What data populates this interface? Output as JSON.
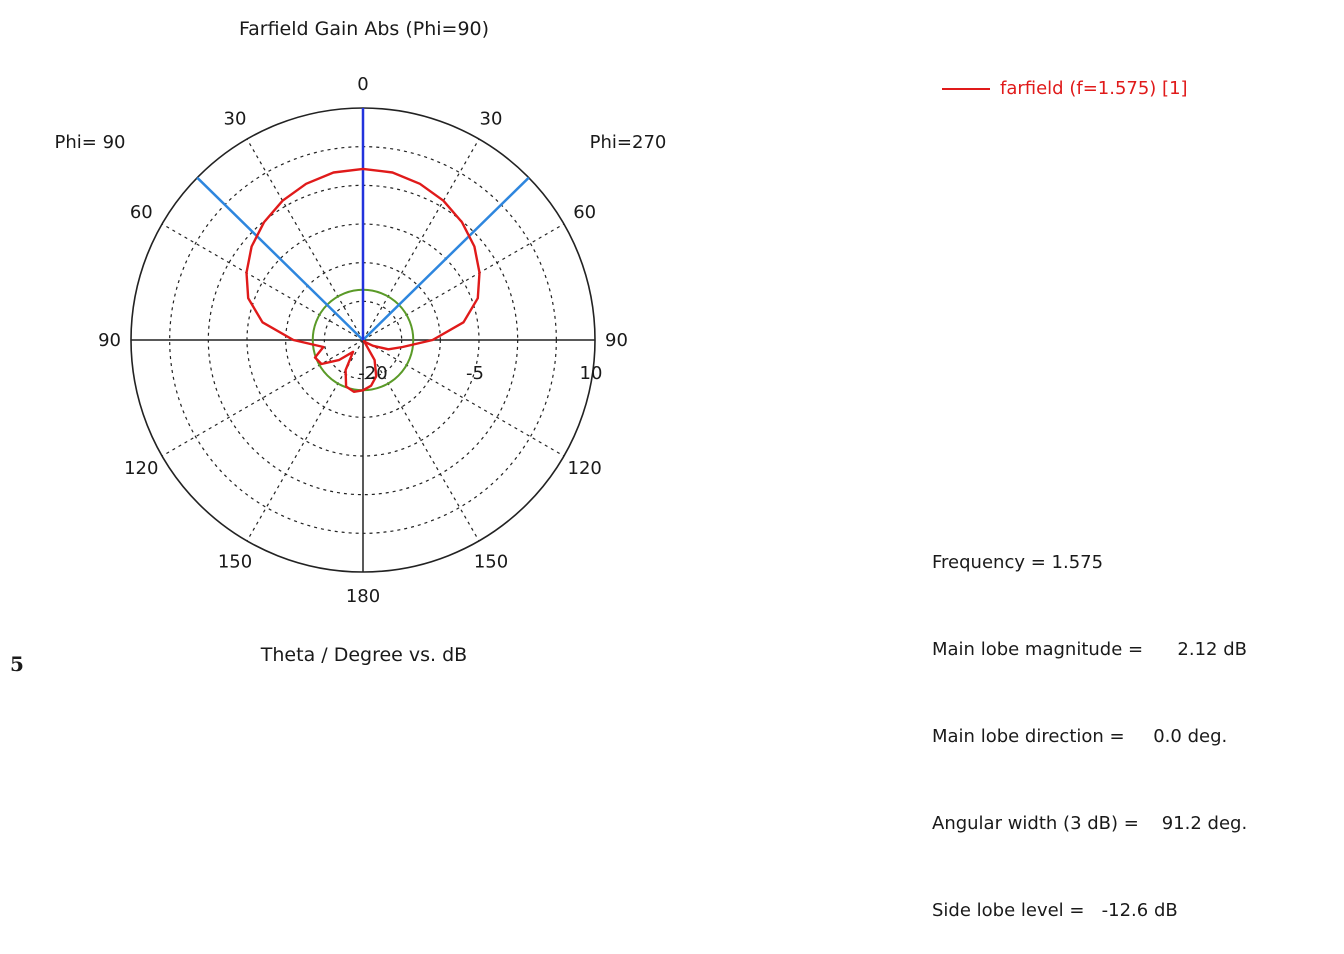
{
  "chart_data": {
    "type": "polar",
    "title": "Farfield Gain Abs (Phi=90)",
    "xlabel": "Theta / Degree vs. dB",
    "scale_db": {
      "min": -20,
      "max": 10,
      "rings": [
        -20,
        -15,
        -10,
        -5,
        0,
        5,
        10
      ]
    },
    "radial_tick_labels": [
      "-20",
      "-5",
      "10"
    ],
    "angle_labels": [
      {
        "text": "0",
        "angle_deg": 0
      },
      {
        "text": "30",
        "angle_deg": -30
      },
      {
        "text": "30",
        "angle_deg": 30
      },
      {
        "text": "60",
        "angle_deg": -60
      },
      {
        "text": "60",
        "angle_deg": 60
      },
      {
        "text": "90",
        "angle_deg": -90
      },
      {
        "text": "90",
        "angle_deg": 90
      },
      {
        "text": "120",
        "angle_deg": -120
      },
      {
        "text": "120",
        "angle_deg": 120
      },
      {
        "text": "150",
        "angle_deg": -150
      },
      {
        "text": "150",
        "angle_deg": 150
      },
      {
        "text": "180",
        "angle_deg": 180
      }
    ],
    "phi_left_label": "Phi= 90",
    "phi_right_label": "Phi=270",
    "series": [
      {
        "name": "farfield (f=1.575) [1]",
        "color": "#e01a1a",
        "theta_deg": [
          -180,
          -170,
          -160,
          -150,
          -140,
          -130,
          -120,
          -110,
          -100,
          -90,
          -80,
          -70,
          -60,
          -50,
          -40,
          -30,
          -20,
          -10,
          0,
          10,
          20,
          30,
          40,
          50,
          60,
          70,
          80,
          90,
          100,
          110,
          120,
          130,
          140,
          150,
          160,
          170,
          180
        ],
        "gain_db": [
          -13.5,
          -13.2,
          -13.6,
          -15.5,
          -18.0,
          -16.0,
          -13.8,
          -13.4,
          -14.8,
          -11.0,
          -6.8,
          -4.2,
          -2.6,
          -1.2,
          -0.1,
          0.8,
          1.5,
          2.0,
          2.12,
          2.0,
          1.5,
          0.8,
          -0.1,
          -1.2,
          -2.6,
          -4.2,
          -6.8,
          -11.0,
          -14.8,
          -16.5,
          -18.5,
          -19.5,
          -19.8,
          -17.0,
          -15.0,
          -14.0,
          -13.5
        ]
      }
    ],
    "reference_circle_db": -13.5,
    "main_lobe_direction_deg": 0,
    "beam_width_deg": 91.2
  },
  "legend": {
    "label": "farfield (f=1.575) [1]"
  },
  "info": {
    "frequency": "Frequency = 1.575",
    "main_lobe_magnitude": "Main lobe magnitude =      2.12 dB",
    "main_lobe_direction": "Main lobe direction =     0.0 deg.",
    "angular_width": "Angular width (3 dB) =    91.2 deg.",
    "side_lobe_level": "Side lobe level =   -12.6 dB"
  },
  "figure_number": "5",
  "colors": {
    "trace": "#e01a1a",
    "main_lobe_axis": "#2233dd",
    "beam_width_lines": "#2e86de",
    "reference_circle": "#5a9a28",
    "grid": "#222222"
  }
}
